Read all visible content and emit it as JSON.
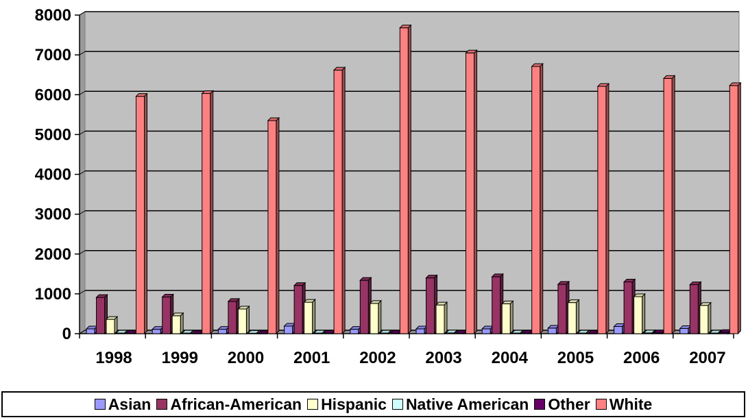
{
  "chart_data": {
    "type": "bar",
    "style": "3d-clustered-column",
    "categories": [
      "1998",
      "1999",
      "2000",
      "2001",
      "2002",
      "2003",
      "2004",
      "2005",
      "2006",
      "2007"
    ],
    "series": [
      {
        "name": "Asian",
        "color": "#9999ff",
        "values": [
          120,
          110,
          110,
          190,
          110,
          120,
          120,
          140,
          180,
          130
        ]
      },
      {
        "name": "African-American",
        "color": "#993366",
        "values": [
          910,
          920,
          810,
          1210,
          1340,
          1400,
          1430,
          1240,
          1300,
          1230
        ]
      },
      {
        "name": "Hispanic",
        "color": "#ffffcc",
        "values": [
          360,
          450,
          620,
          790,
          760,
          720,
          750,
          780,
          930,
          710
        ]
      },
      {
        "name": "Native American",
        "color": "#ccffff",
        "values": [
          15,
          15,
          10,
          15,
          15,
          20,
          15,
          15,
          20,
          15
        ]
      },
      {
        "name": "Other",
        "color": "#660066",
        "values": [
          10,
          5,
          5,
          10,
          10,
          10,
          10,
          5,
          20,
          30
        ]
      },
      {
        "name": "White",
        "color": "#ff8080",
        "values": [
          5960,
          6030,
          5350,
          6620,
          7680,
          7050,
          6710,
          6210,
          6410,
          6230
        ]
      }
    ],
    "ylim": [
      0,
      8000
    ],
    "yticks": [
      0,
      1000,
      2000,
      3000,
      4000,
      5000,
      6000,
      7000,
      8000
    ],
    "grid": true,
    "plot_background": "#c0c0c0",
    "legend_position": "bottom",
    "title": "",
    "xlabel": "",
    "ylabel": ""
  }
}
